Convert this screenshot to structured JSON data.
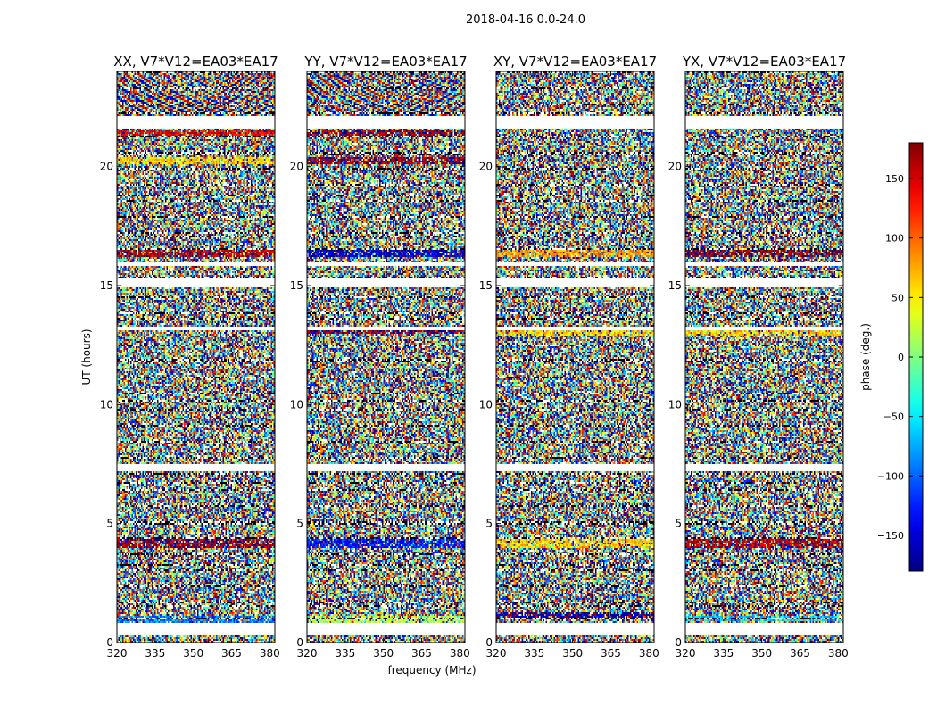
{
  "figure": {
    "suptitle": "2018-04-16 0.0-24.0"
  },
  "chart_data": {
    "type": "heatmap",
    "xlabel": "frequency (MHz)",
    "ylabel": "UT (hours)",
    "xlim": [
      320,
      382
    ],
    "ylim": [
      0,
      24
    ],
    "xticks": [
      320,
      335,
      350,
      365,
      380
    ],
    "yticks": [
      0,
      5,
      10,
      15,
      20
    ],
    "colormap": "jet",
    "colorbar": {
      "label": "phase (deg.)",
      "range": [
        -180,
        180
      ],
      "ticks": [
        150,
        100,
        50,
        0,
        -50,
        -100,
        -150
      ],
      "tick_labels": [
        "150",
        "100",
        "50",
        "0",
        "−50",
        "−100",
        "−150"
      ]
    },
    "panels": [
      {
        "title": "XX, V7*V12=EA03*EA17",
        "bands": [
          [
            4.0,
            4.4,
            170
          ],
          [
            0.8,
            1.1,
            -90
          ],
          [
            16.2,
            16.5,
            160
          ],
          [
            20.1,
            20.4,
            60
          ],
          [
            21.2,
            21.5,
            140
          ]
        ]
      },
      {
        "title": "YY, V7*V12=EA03*EA17",
        "bands": [
          [
            4.0,
            4.4,
            -130
          ],
          [
            0.8,
            1.1,
            20
          ],
          [
            16.2,
            16.5,
            -150
          ],
          [
            20.1,
            20.4,
            170
          ],
          [
            13.0,
            13.2,
            175
          ],
          [
            21.2,
            21.5,
            170
          ]
        ]
      },
      {
        "title": "XY, V7*V12=EA03*EA17",
        "bands": [
          [
            4.0,
            4.4,
            60
          ],
          [
            1.0,
            1.3,
            -165
          ],
          [
            16.2,
            16.5,
            80
          ],
          [
            12.9,
            13.1,
            60
          ]
        ]
      },
      {
        "title": "YX, V7*V12=EA03*EA17",
        "bands": [
          [
            4.0,
            4.4,
            160
          ],
          [
            0.9,
            1.1,
            -60
          ],
          [
            16.2,
            16.5,
            170
          ],
          [
            12.9,
            13.1,
            60
          ]
        ]
      }
    ],
    "blank_rows": [
      [
        0.3,
        0.8
      ],
      [
        7.2,
        7.5
      ],
      [
        13.1,
        13.3
      ],
      [
        14.9,
        15.3
      ],
      [
        15.8,
        16.0
      ],
      [
        21.6,
        22.1
      ]
    ]
  }
}
